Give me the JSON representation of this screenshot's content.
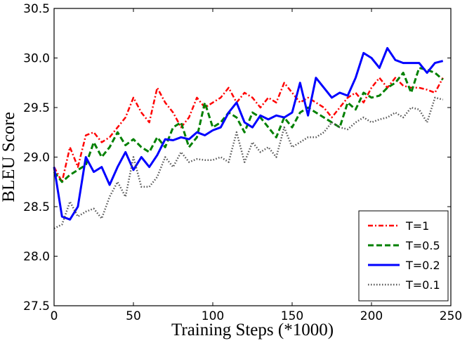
{
  "chart_data": {
    "type": "line",
    "title": "",
    "xlabel": "Training Steps (*1000)",
    "ylabel": "BLEU Score",
    "xlim": [
      0,
      250
    ],
    "ylim": [
      27.5,
      30.5
    ],
    "xticks": [
      "0",
      "50",
      "100",
      "150",
      "200",
      "250"
    ],
    "yticks": [
      "27.5",
      "28.0",
      "28.5",
      "29.0",
      "29.5",
      "30.0",
      "30.5"
    ],
    "grid": false,
    "legend_position": "lower-right",
    "x": [
      0,
      5,
      10,
      15,
      20,
      25,
      30,
      35,
      40,
      45,
      50,
      55,
      60,
      65,
      70,
      75,
      80,
      85,
      90,
      95,
      100,
      105,
      110,
      115,
      120,
      125,
      130,
      135,
      140,
      145,
      150,
      155,
      160,
      165,
      170,
      175,
      180,
      185,
      190,
      195,
      200,
      205,
      210,
      215,
      220,
      225,
      230,
      235,
      240,
      245
    ],
    "series": [
      {
        "name": "T=1",
        "color": "#ff0000",
        "style": "dashdot",
        "values": [
          28.9,
          28.75,
          29.1,
          28.9,
          29.22,
          29.25,
          29.15,
          29.2,
          29.3,
          29.4,
          29.6,
          29.45,
          29.35,
          29.7,
          29.55,
          29.45,
          29.3,
          29.4,
          29.6,
          29.5,
          29.55,
          29.6,
          29.7,
          29.55,
          29.65,
          29.6,
          29.5,
          29.6,
          29.55,
          29.75,
          29.65,
          29.55,
          29.6,
          29.55,
          29.5,
          29.4,
          29.5,
          29.6,
          29.65,
          29.55,
          29.7,
          29.8,
          29.7,
          29.8,
          29.72,
          29.7,
          29.7,
          29.68,
          29.65,
          29.8
        ]
      },
      {
        "name": "T=0.5",
        "color": "#008000",
        "style": "dashed",
        "values": [
          28.85,
          28.75,
          28.82,
          28.87,
          28.92,
          29.15,
          29.0,
          29.1,
          29.25,
          29.12,
          29.18,
          29.1,
          29.05,
          29.2,
          29.1,
          29.3,
          29.35,
          29.1,
          29.2,
          29.55,
          29.3,
          29.35,
          29.45,
          29.4,
          29.25,
          29.45,
          29.4,
          29.3,
          29.2,
          29.4,
          29.3,
          29.45,
          29.5,
          29.45,
          29.4,
          29.35,
          29.3,
          29.55,
          29.48,
          29.65,
          29.6,
          29.62,
          29.7,
          29.75,
          29.85,
          29.65,
          29.9,
          29.88,
          29.85,
          29.78
        ]
      },
      {
        "name": "T=0.2",
        "color": "#0000ff",
        "style": "solid",
        "values": [
          28.9,
          28.4,
          28.37,
          28.5,
          29.0,
          28.85,
          28.9,
          28.72,
          28.9,
          29.05,
          28.87,
          29.0,
          28.9,
          29.02,
          29.18,
          29.17,
          29.2,
          29.18,
          29.25,
          29.22,
          29.27,
          29.3,
          29.45,
          29.55,
          29.35,
          29.3,
          29.42,
          29.38,
          29.42,
          29.4,
          29.45,
          29.75,
          29.42,
          29.8,
          29.7,
          29.6,
          29.65,
          29.62,
          29.8,
          30.05,
          30.0,
          29.9,
          30.1,
          29.98,
          29.95,
          29.95,
          29.95,
          29.85,
          29.95,
          29.97
        ]
      },
      {
        "name": "T=0.1",
        "color": "#555555",
        "style": "dotted",
        "values": [
          28.28,
          28.32,
          28.55,
          28.4,
          28.45,
          28.48,
          28.38,
          28.6,
          28.75,
          28.6,
          29.0,
          28.7,
          28.7,
          28.8,
          29.0,
          28.9,
          29.05,
          28.95,
          28.98,
          28.97,
          28.97,
          29.0,
          28.95,
          29.25,
          28.95,
          29.15,
          29.05,
          29.1,
          29.0,
          29.3,
          29.1,
          29.15,
          29.2,
          29.2,
          29.25,
          29.35,
          29.3,
          29.28,
          29.35,
          29.4,
          29.35,
          29.38,
          29.4,
          29.45,
          29.4,
          29.5,
          29.48,
          29.35,
          29.6,
          29.58
        ]
      }
    ]
  }
}
